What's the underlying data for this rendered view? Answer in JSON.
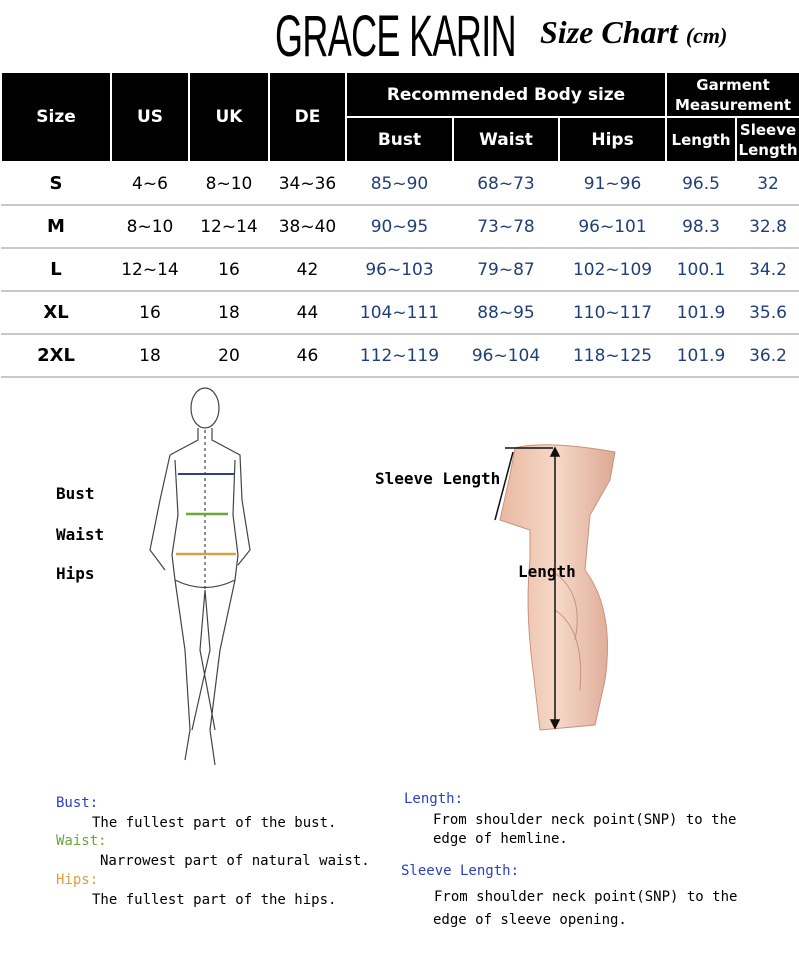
{
  "brand": "GRACE KARIN",
  "title": "Size Chart",
  "unit": "(cm)",
  "table": {
    "headers": {
      "size": "Size",
      "us": "US",
      "uk": "UK",
      "de": "DE",
      "body_group": "Recommended Body size",
      "garment_group": "Garment Measurement",
      "bust": "Bust",
      "waist": "Waist",
      "hips": "Hips",
      "length": "Length",
      "sleeve": "Sleeve Length"
    },
    "rows": [
      {
        "size": "S",
        "us": "4~6",
        "uk": "8~10",
        "de": "34~36",
        "bust": "85~90",
        "waist": "68~73",
        "hips": "91~96",
        "length": "96.5",
        "sleeve": "32"
      },
      {
        "size": "M",
        "us": "8~10",
        "uk": "12~14",
        "de": "38~40",
        "bust": "90~95",
        "waist": "73~78",
        "hips": "96~101",
        "length": "98.3",
        "sleeve": "32.8"
      },
      {
        "size": "L",
        "us": "12~14",
        "uk": "16",
        "de": "42",
        "bust": "96~103",
        "waist": "79~87",
        "hips": "102~109",
        "length": "100.1",
        "sleeve": "34.2"
      },
      {
        "size": "XL",
        "us": "16",
        "uk": "18",
        "de": "44",
        "bust": "104~111",
        "waist": "88~95",
        "hips": "110~117",
        "length": "101.9",
        "sleeve": "35.6"
      },
      {
        "size": "2XL",
        "us": "18",
        "uk": "20",
        "de": "46",
        "bust": "112~119",
        "waist": "96~104",
        "hips": "118~125",
        "length": "101.9",
        "sleeve": "36.2"
      }
    ]
  },
  "figure_labels": {
    "bust": "Bust",
    "waist": "Waist",
    "hips": "Hips",
    "sleeve": "Sleeve Length",
    "length": "Length"
  },
  "notes": {
    "bust": {
      "head": "Bust:",
      "text": "The fullest part of the bust.",
      "color": "#2a3fc0"
    },
    "waist": {
      "head": "Waist:",
      "text": "Narrowest part of natural waist.",
      "color": "#6aa83a"
    },
    "hips": {
      "head": "Hips:",
      "text": "The fullest part of the hips.",
      "color": "#d9a040"
    },
    "length": {
      "head": "Length:",
      "line1": "From shoulder neck point(SNP) to the",
      "line2": "edge of hemline.",
      "color": "#2a3fc0"
    },
    "sleeve": {
      "head": "Sleeve Length:",
      "line1": "From shoulder neck point(SNP) to the",
      "line2": "edge of sleeve opening.",
      "color": "#2a3fc0"
    }
  }
}
